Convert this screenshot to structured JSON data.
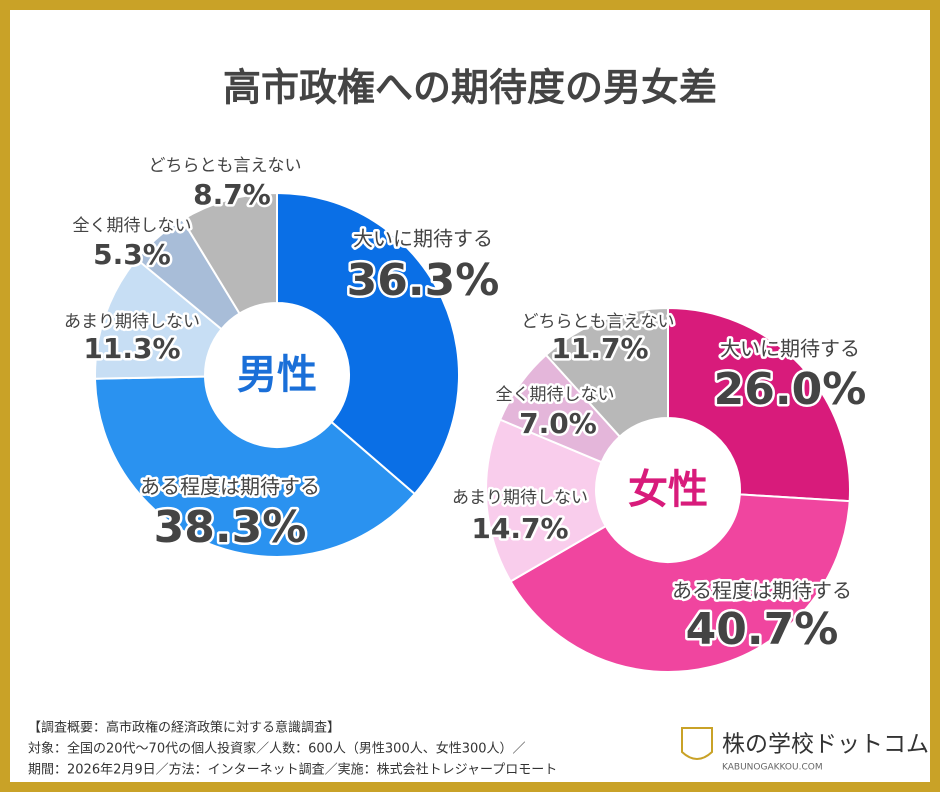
{
  "title": "高市政権への期待度の男女差",
  "chart_data": [
    {
      "type": "donut",
      "center_label": "男性",
      "center_color": "#1a6fd8",
      "categories": [
        "大いに期待する",
        "ある程度は期待する",
        "あまり期待しない",
        "全く期待しない",
        "どちらとも言えない"
      ],
      "values": [
        36.3,
        38.3,
        11.3,
        5.3,
        8.7
      ],
      "value_labels": [
        "36.3%",
        "38.3%",
        "11.3%",
        "5.3%",
        "8.7%"
      ],
      "colors": [
        "#0a6fe6",
        "#2a92f0",
        "#c7def4",
        "#a8bdd8",
        "#b8b8b8"
      ]
    },
    {
      "type": "donut",
      "center_label": "女性",
      "center_color": "#d81b7b",
      "categories": [
        "大いに期待する",
        "ある程度は期待する",
        "あまり期待しない",
        "全く期待しない",
        "どちらとも言えない"
      ],
      "values": [
        26.0,
        40.7,
        14.7,
        7.0,
        11.7
      ],
      "value_labels": [
        "26.0%",
        "40.7%",
        "14.7%",
        "7.0%",
        "11.7%"
      ],
      "colors": [
        "#d81b7b",
        "#f0459f",
        "#f9cdec",
        "#e4b6da",
        "#b8b8b8"
      ]
    }
  ],
  "notes": [
    "【調査概要：高市政権の経済政策に対する意識調査】",
    "対象：全国の20代～70代の個人投資家／人数：600人（男性300人、女性300人）／",
    "期間：2026年2月9日／方法：インターネット調査／実施：株式会社トレジャープロモート"
  ],
  "logo": {
    "name": "株の学校ドットコム",
    "url": "KABUNOGAKKOU.COM"
  }
}
